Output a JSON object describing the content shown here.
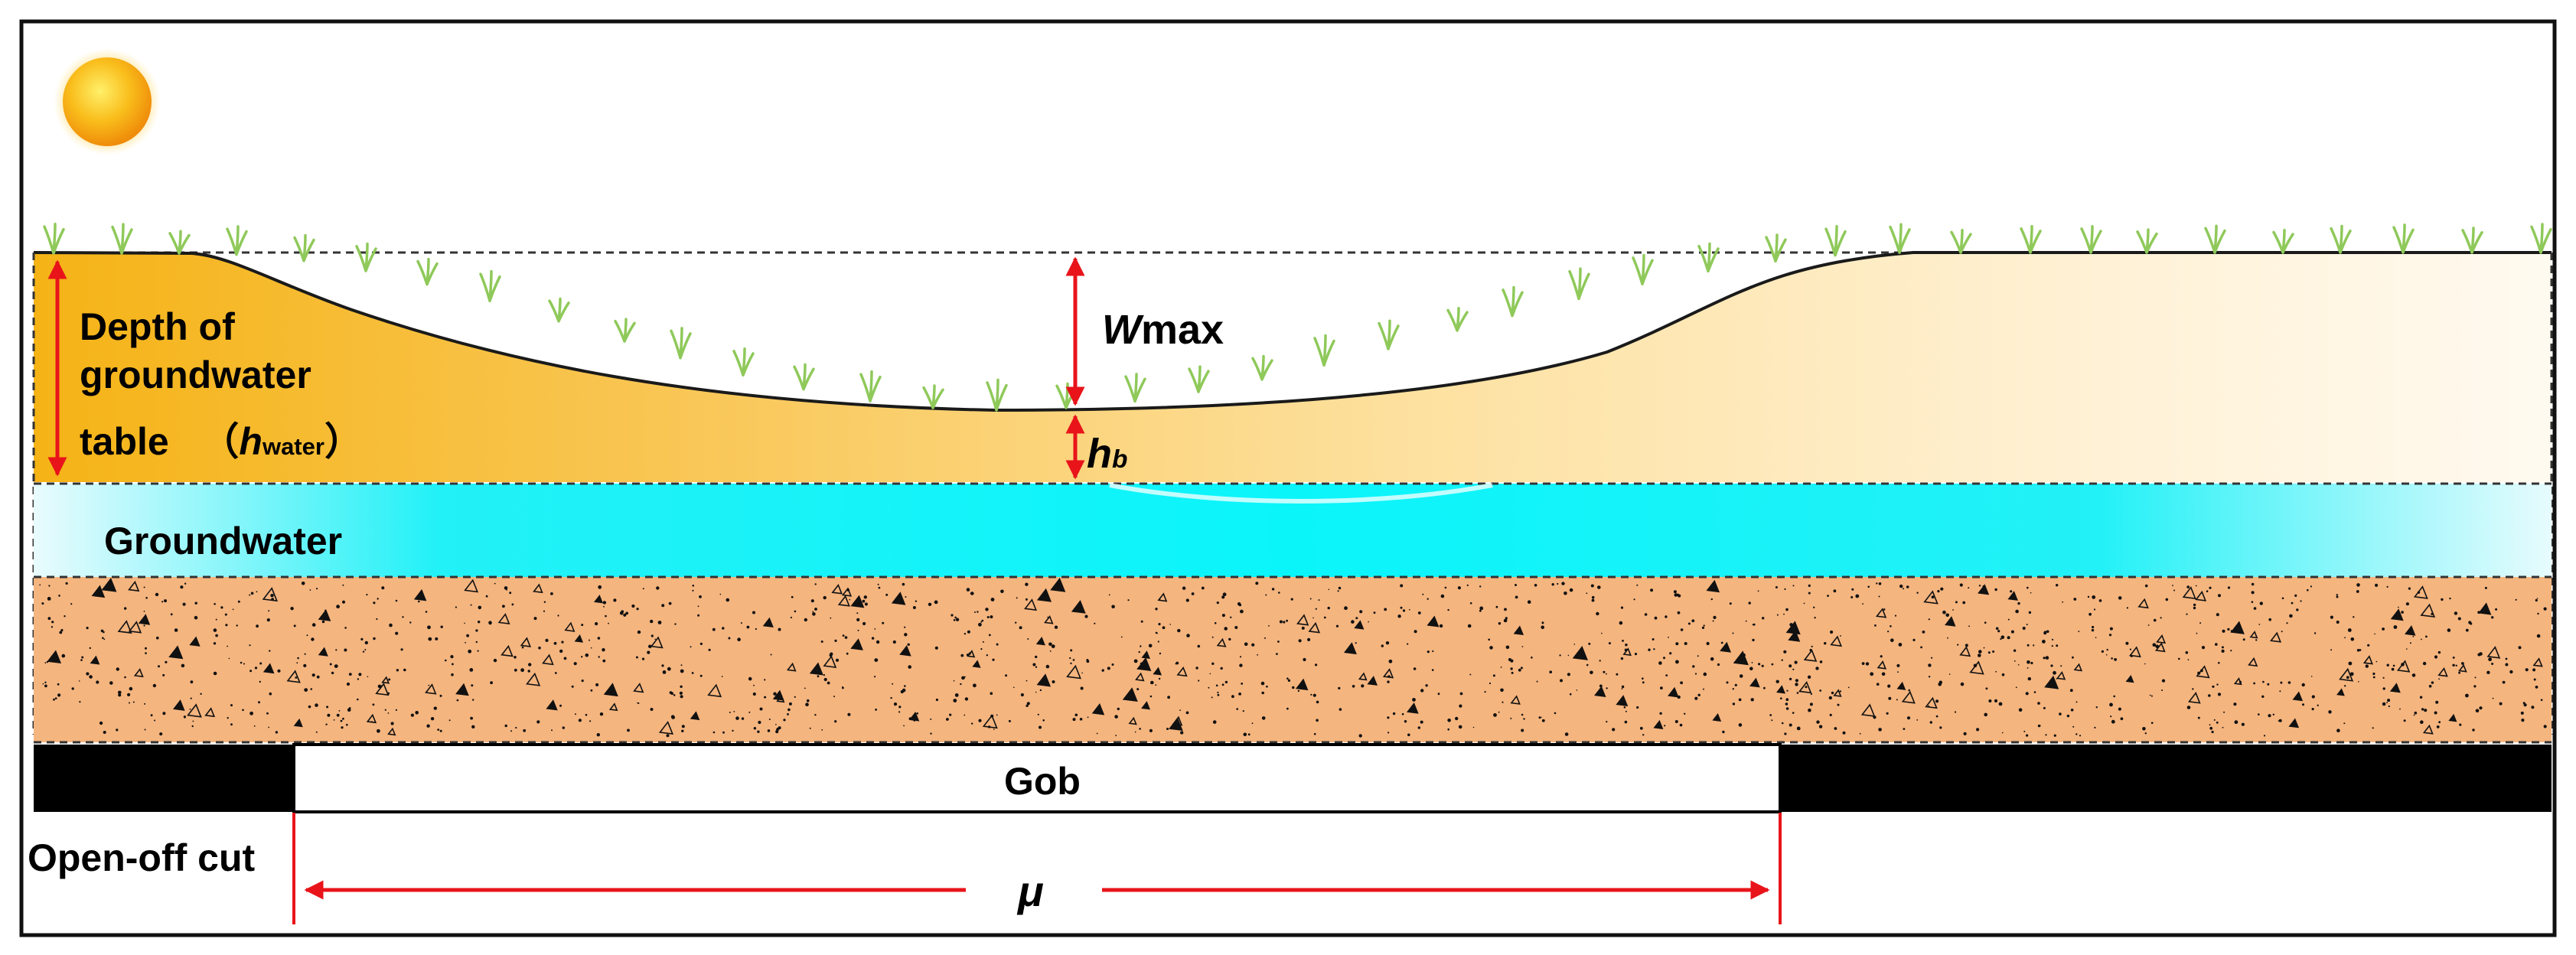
{
  "labels": {
    "depth_line1": "Depth of",
    "depth_line2": "groundwater",
    "depth_line3_prefix": "table",
    "depth_h": "h",
    "depth_sub": "water",
    "wmax_w": "W",
    "wmax_rest": "max",
    "hb_h": "h",
    "hb_sub": "b",
    "groundwater": "Groundwater",
    "gob": "Gob",
    "open_off_cut": "Open-off cut",
    "mu": "μ"
  },
  "icons": {
    "sun": "sun-icon",
    "grass": "grass-tuft-icon"
  },
  "colors": {
    "soil_dark": "#f6b41a",
    "soil_light": "#fff6e2",
    "water_cyan": "#11f3f8",
    "water_pale": "#e7fbfd",
    "rock_layer": "#f5b57f",
    "coal_seam": "#000000",
    "dimension_red": "#e8141a",
    "grass_green": "#8fc95a"
  }
}
